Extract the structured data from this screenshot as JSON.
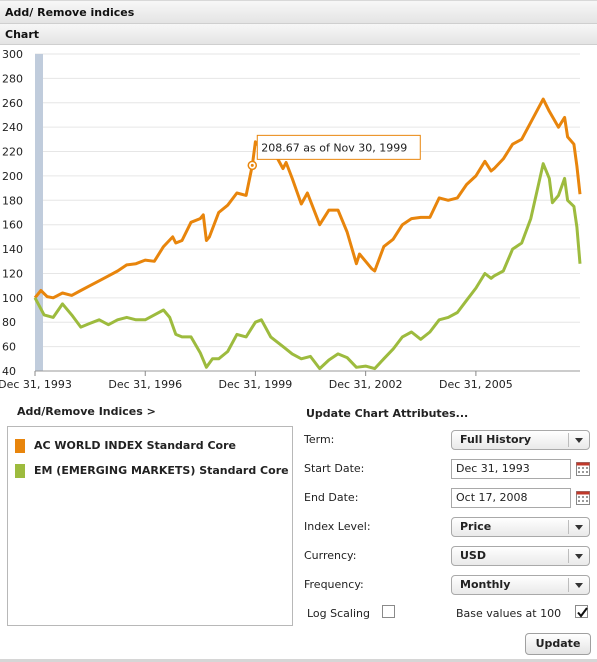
{
  "header": {
    "title": "Add/ Remove indices",
    "chart_section_title": "Chart"
  },
  "chart_data": {
    "type": "line",
    "x_axis_ticks": [
      "Dec 31, 1993",
      "Dec 31, 1996",
      "Dec 31, 1999",
      "Dec 31, 2002",
      "Dec 31, 2005"
    ],
    "y_axis_ticks": [
      "300",
      "280",
      "260",
      "240",
      "220",
      "200",
      "180",
      "160",
      "140",
      "120",
      "100",
      "80",
      "60",
      "40"
    ],
    "ylim": [
      40,
      300
    ],
    "xlim": [
      "1993-12-31",
      "2008-10-31"
    ],
    "grid": true,
    "tooltip": {
      "text": "208.67 as of Nov 30, 1999",
      "x": "1999-11-30",
      "y": 208.67
    },
    "series": [
      {
        "name": "AC WORLD INDEX Standard Core",
        "color": "#e8850c",
        "points": [
          [
            "1993-12-31",
            100
          ],
          [
            "1994-02-28",
            106
          ],
          [
            "1994-04-30",
            101
          ],
          [
            "1994-06-30",
            100
          ],
          [
            "1994-09-30",
            104
          ],
          [
            "1994-12-31",
            102
          ],
          [
            "1995-03-31",
            106
          ],
          [
            "1995-06-30",
            110
          ],
          [
            "1995-09-30",
            114
          ],
          [
            "1995-12-31",
            118
          ],
          [
            "1996-03-31",
            122
          ],
          [
            "1996-06-30",
            127
          ],
          [
            "1996-09-30",
            128
          ],
          [
            "1996-12-31",
            131
          ],
          [
            "1997-03-31",
            130
          ],
          [
            "1997-06-30",
            142
          ],
          [
            "1997-09-30",
            150
          ],
          [
            "1997-10-31",
            145
          ],
          [
            "1997-12-31",
            147
          ],
          [
            "1998-03-31",
            162
          ],
          [
            "1998-06-30",
            165
          ],
          [
            "1998-07-31",
            168
          ],
          [
            "1998-08-31",
            147
          ],
          [
            "1998-09-30",
            150
          ],
          [
            "1998-12-31",
            170
          ],
          [
            "1999-03-31",
            176
          ],
          [
            "1999-06-30",
            186
          ],
          [
            "1999-09-30",
            184
          ],
          [
            "1999-11-30",
            208.67
          ],
          [
            "1999-12-31",
            228
          ],
          [
            "2000-02-29",
            222
          ],
          [
            "2000-03-31",
            226
          ],
          [
            "2000-05-31",
            216
          ],
          [
            "2000-06-30",
            220
          ],
          [
            "2000-09-30",
            206
          ],
          [
            "2000-10-31",
            211
          ],
          [
            "2000-12-31",
            198
          ],
          [
            "2001-03-31",
            177
          ],
          [
            "2001-05-31",
            186
          ],
          [
            "2001-09-30",
            160
          ],
          [
            "2001-12-31",
            172
          ],
          [
            "2002-03-31",
            172
          ],
          [
            "2002-06-30",
            154
          ],
          [
            "2002-09-30",
            128
          ],
          [
            "2002-10-31",
            136
          ],
          [
            "2002-12-31",
            130
          ],
          [
            "2003-02-28",
            124
          ],
          [
            "2003-03-31",
            122
          ],
          [
            "2003-06-30",
            142
          ],
          [
            "2003-09-30",
            148
          ],
          [
            "2003-12-31",
            160
          ],
          [
            "2004-03-31",
            165
          ],
          [
            "2004-06-30",
            166
          ],
          [
            "2004-09-30",
            166
          ],
          [
            "2004-12-31",
            182
          ],
          [
            "2005-03-31",
            180
          ],
          [
            "2005-06-30",
            182
          ],
          [
            "2005-09-30",
            193
          ],
          [
            "2005-12-31",
            200
          ],
          [
            "2006-03-31",
            212
          ],
          [
            "2006-05-31",
            204
          ],
          [
            "2006-06-30",
            206
          ],
          [
            "2006-09-30",
            214
          ],
          [
            "2006-12-31",
            226
          ],
          [
            "2007-03-31",
            230
          ],
          [
            "2007-06-30",
            244
          ],
          [
            "2007-10-31",
            263
          ],
          [
            "2007-12-31",
            253
          ],
          [
            "2008-03-31",
            240
          ],
          [
            "2008-05-31",
            248
          ],
          [
            "2008-06-30",
            232
          ],
          [
            "2008-08-31",
            226
          ],
          [
            "2008-09-30",
            208
          ],
          [
            "2008-10-31",
            185
          ]
        ]
      },
      {
        "name": "EM (EMERGING MARKETS) Standard Core",
        "color": "#9dbb3e",
        "points": [
          [
            "1993-12-31",
            100
          ],
          [
            "1994-03-31",
            86
          ],
          [
            "1994-06-30",
            84
          ],
          [
            "1994-09-30",
            95
          ],
          [
            "1994-12-31",
            86
          ],
          [
            "1995-03-31",
            76
          ],
          [
            "1995-06-30",
            79
          ],
          [
            "1995-09-30",
            82
          ],
          [
            "1995-12-31",
            78
          ],
          [
            "1996-03-31",
            82
          ],
          [
            "1996-06-30",
            84
          ],
          [
            "1996-09-30",
            82
          ],
          [
            "1996-12-31",
            82
          ],
          [
            "1997-03-31",
            86
          ],
          [
            "1997-06-30",
            90
          ],
          [
            "1997-08-31",
            84
          ],
          [
            "1997-10-31",
            70
          ],
          [
            "1997-12-31",
            68
          ],
          [
            "1998-03-31",
            68
          ],
          [
            "1998-06-30",
            55
          ],
          [
            "1998-08-31",
            43
          ],
          [
            "1998-10-31",
            50
          ],
          [
            "1998-12-31",
            50
          ],
          [
            "1999-03-31",
            56
          ],
          [
            "1999-06-30",
            70
          ],
          [
            "1999-09-30",
            68
          ],
          [
            "1999-12-31",
            80
          ],
          [
            "2000-02-29",
            82
          ],
          [
            "2000-05-31",
            68
          ],
          [
            "2000-06-30",
            66
          ],
          [
            "2000-09-30",
            60
          ],
          [
            "2000-12-31",
            54
          ],
          [
            "2001-03-31",
            50
          ],
          [
            "2001-06-30",
            52
          ],
          [
            "2001-09-30",
            42
          ],
          [
            "2001-12-31",
            49
          ],
          [
            "2002-03-31",
            54
          ],
          [
            "2002-06-30",
            51
          ],
          [
            "2002-09-30",
            43
          ],
          [
            "2002-12-31",
            44
          ],
          [
            "2003-03-31",
            42
          ],
          [
            "2003-06-30",
            50
          ],
          [
            "2003-09-30",
            58
          ],
          [
            "2003-12-31",
            68
          ],
          [
            "2004-03-31",
            72
          ],
          [
            "2004-06-30",
            66
          ],
          [
            "2004-09-30",
            72
          ],
          [
            "2004-12-31",
            82
          ],
          [
            "2005-03-31",
            84
          ],
          [
            "2005-06-30",
            88
          ],
          [
            "2005-09-30",
            98
          ],
          [
            "2005-12-31",
            108
          ],
          [
            "2006-03-31",
            120
          ],
          [
            "2006-05-31",
            116
          ],
          [
            "2006-06-30",
            118
          ],
          [
            "2006-09-30",
            122
          ],
          [
            "2006-12-31",
            140
          ],
          [
            "2007-03-31",
            145
          ],
          [
            "2007-06-30",
            165
          ],
          [
            "2007-10-31",
            210
          ],
          [
            "2007-12-31",
            198
          ],
          [
            "2008-01-31",
            178
          ],
          [
            "2008-03-31",
            184
          ],
          [
            "2008-05-31",
            198
          ],
          [
            "2008-06-30",
            180
          ],
          [
            "2008-08-31",
            175
          ],
          [
            "2008-09-30",
            158
          ],
          [
            "2008-10-31",
            128
          ]
        ]
      }
    ]
  },
  "indices": {
    "heading": "Add/Remove Indices >",
    "items": [
      {
        "label": "AC WORLD INDEX Standard Core",
        "color": "#e8850c"
      },
      {
        "label": "EM (EMERGING MARKETS) Standard Core",
        "color": "#9dbb3e"
      }
    ]
  },
  "attributes": {
    "heading": "Update Chart Attributes...",
    "term": {
      "label": "Term:",
      "value": "Full History"
    },
    "start_date": {
      "label": "Start Date:",
      "value": "Dec 31, 1993"
    },
    "end_date": {
      "label": "End Date:",
      "value": "Oct 17, 2008"
    },
    "index_level": {
      "label": "Index Level:",
      "value": "Price"
    },
    "currency": {
      "label": "Currency:",
      "value": "USD"
    },
    "frequency": {
      "label": "Frequency:",
      "value": "Monthly"
    },
    "log_scaling": {
      "label": "Log Scaling",
      "checked": false
    },
    "base_values": {
      "label": "Base values at 100",
      "checked": true
    },
    "update_label": "Update"
  }
}
